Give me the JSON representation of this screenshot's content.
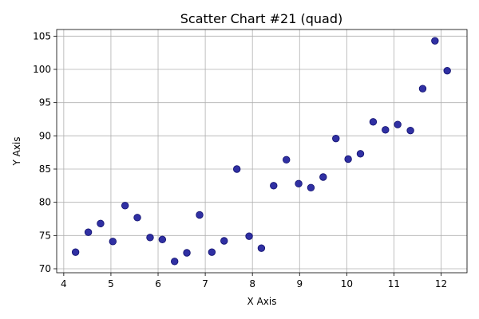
{
  "chart_data": {
    "type": "scatter",
    "title": "Scatter Chart #21 (quad)",
    "xlabel": "X Axis",
    "ylabel": "Y Axis",
    "xlim": [
      3.85,
      12.55
    ],
    "ylim": [
      69.4,
      106.0
    ],
    "xticks": [
      4,
      5,
      6,
      7,
      8,
      9,
      10,
      11,
      12
    ],
    "yticks": [
      70,
      75,
      80,
      85,
      90,
      95,
      100,
      105
    ],
    "grid": true,
    "marker_color": "#1a1a99",
    "marker_edge": "#10106e",
    "points": [
      {
        "x": 4.25,
        "y": 72.5
      },
      {
        "x": 4.52,
        "y": 75.5
      },
      {
        "x": 4.78,
        "y": 76.8
      },
      {
        "x": 5.04,
        "y": 74.1
      },
      {
        "x": 5.3,
        "y": 79.5
      },
      {
        "x": 5.56,
        "y": 77.7
      },
      {
        "x": 5.83,
        "y": 74.7
      },
      {
        "x": 6.09,
        "y": 74.4
      },
      {
        "x": 6.35,
        "y": 71.1
      },
      {
        "x": 6.61,
        "y": 72.4
      },
      {
        "x": 6.88,
        "y": 78.1
      },
      {
        "x": 7.14,
        "y": 72.5
      },
      {
        "x": 7.4,
        "y": 74.2
      },
      {
        "x": 7.67,
        "y": 85.0
      },
      {
        "x": 7.93,
        "y": 74.9
      },
      {
        "x": 8.19,
        "y": 73.1
      },
      {
        "x": 8.45,
        "y": 82.5
      },
      {
        "x": 8.72,
        "y": 86.4
      },
      {
        "x": 8.98,
        "y": 82.8
      },
      {
        "x": 9.24,
        "y": 82.2
      },
      {
        "x": 9.5,
        "y": 83.8
      },
      {
        "x": 9.77,
        "y": 89.6
      },
      {
        "x": 10.03,
        "y": 86.5
      },
      {
        "x": 10.29,
        "y": 87.3
      },
      {
        "x": 10.56,
        "y": 92.1
      },
      {
        "x": 10.82,
        "y": 90.9
      },
      {
        "x": 11.08,
        "y": 91.7
      },
      {
        "x": 11.35,
        "y": 90.8
      },
      {
        "x": 11.61,
        "y": 97.1
      },
      {
        "x": 11.87,
        "y": 104.3
      },
      {
        "x": 12.13,
        "y": 99.8
      }
    ]
  }
}
